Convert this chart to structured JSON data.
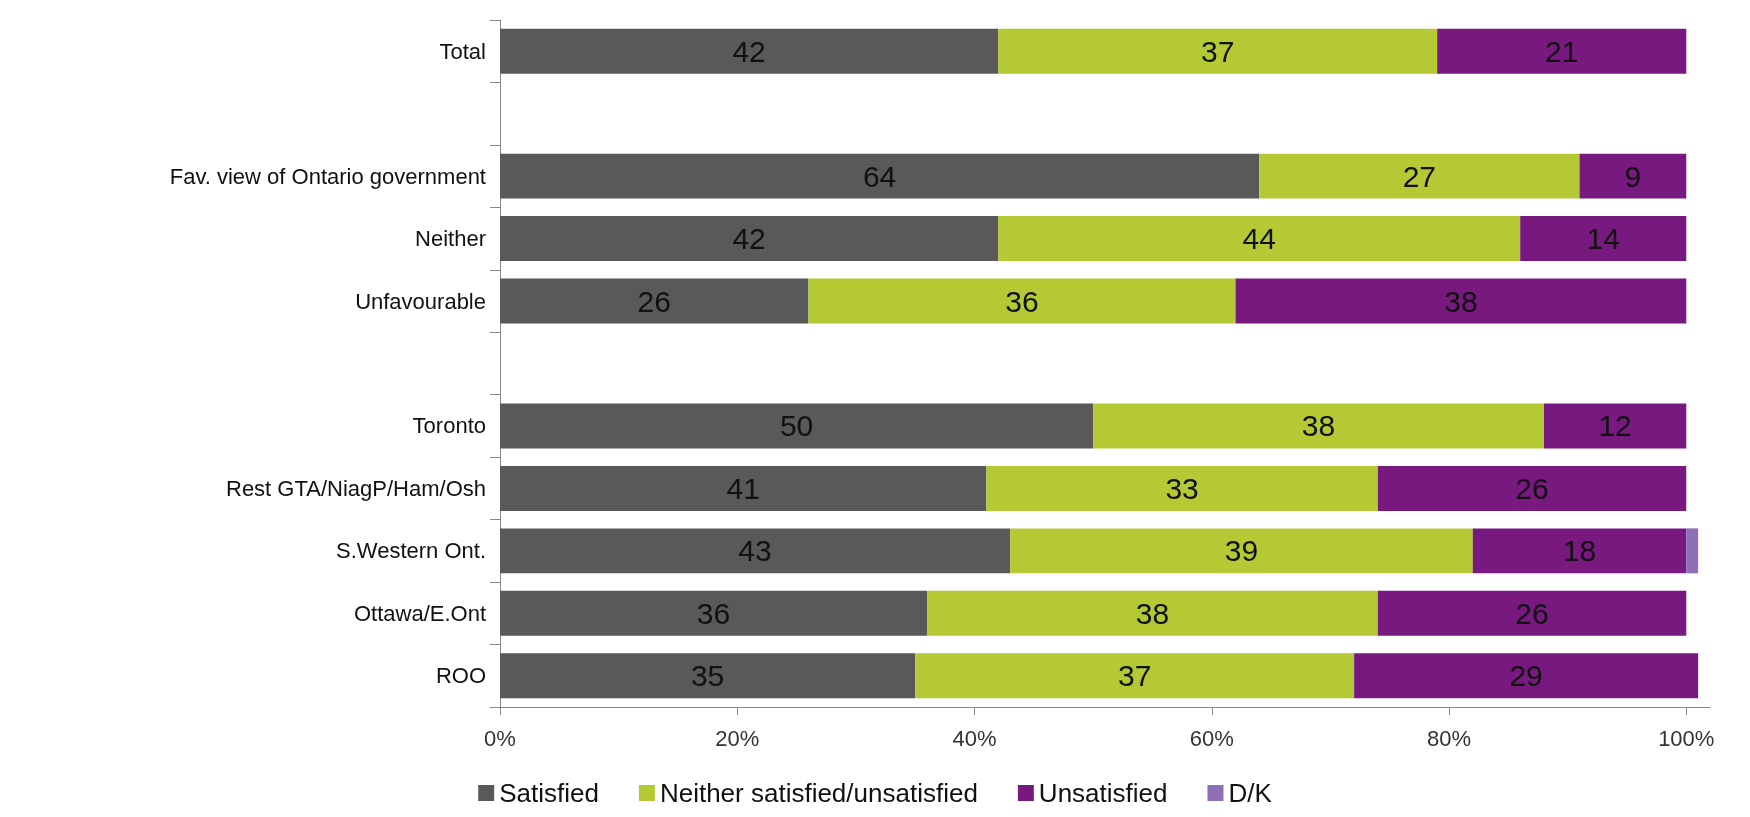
{
  "chart_data": {
    "type": "bar",
    "orientation": "horizontal",
    "stacked": true,
    "categories": [
      "Total",
      null,
      "Fav. view of Ontario government",
      "Neither",
      "Unfavourable",
      null,
      "Toronto",
      "Rest GTA/NiagP/Ham/Osh",
      "S.Western Ont.",
      "Ottawa/E.Ont",
      "ROO"
    ],
    "series": [
      {
        "name": "Satisfied",
        "color": "#595959",
        "values": [
          42,
          null,
          64,
          42,
          26,
          null,
          50,
          41,
          43,
          36,
          35
        ],
        "value_labels": [
          "42",
          null,
          "64",
          "42",
          "26",
          null,
          "50",
          "41",
          "43",
          "36",
          "35"
        ]
      },
      {
        "name": "Neither satisfied/unsatisfied",
        "color": "#b5c934",
        "values": [
          37,
          null,
          27,
          44,
          36,
          null,
          38,
          33,
          39,
          38,
          37
        ],
        "value_labels": [
          "37",
          null,
          "27",
          "44",
          "36",
          null,
          "38",
          "33",
          "39",
          "38",
          "37"
        ]
      },
      {
        "name": "Unsatisfied",
        "color": "#77197f",
        "values": [
          21,
          null,
          9,
          14,
          38,
          null,
          12,
          26,
          18,
          26,
          29
        ],
        "value_labels": [
          "21",
          null,
          "9",
          "14",
          "38",
          null,
          "12",
          "26",
          "18",
          "26",
          "29"
        ]
      },
      {
        "name": "D/K",
        "color": "#8f6fb5",
        "values": [
          null,
          null,
          null,
          null,
          null,
          null,
          null,
          null,
          1,
          null,
          null
        ]
      }
    ],
    "xlim": [
      0,
      102
    ],
    "xticks": [
      {
        "value": 0,
        "label": "0%"
      },
      {
        "value": 20,
        "label": "20%"
      },
      {
        "value": 40,
        "label": "40%"
      },
      {
        "value": 60,
        "label": "60%"
      },
      {
        "value": 80,
        "label": "80%"
      },
      {
        "value": 100,
        "label": "100%"
      }
    ],
    "grid": false,
    "legend": "bottom"
  }
}
